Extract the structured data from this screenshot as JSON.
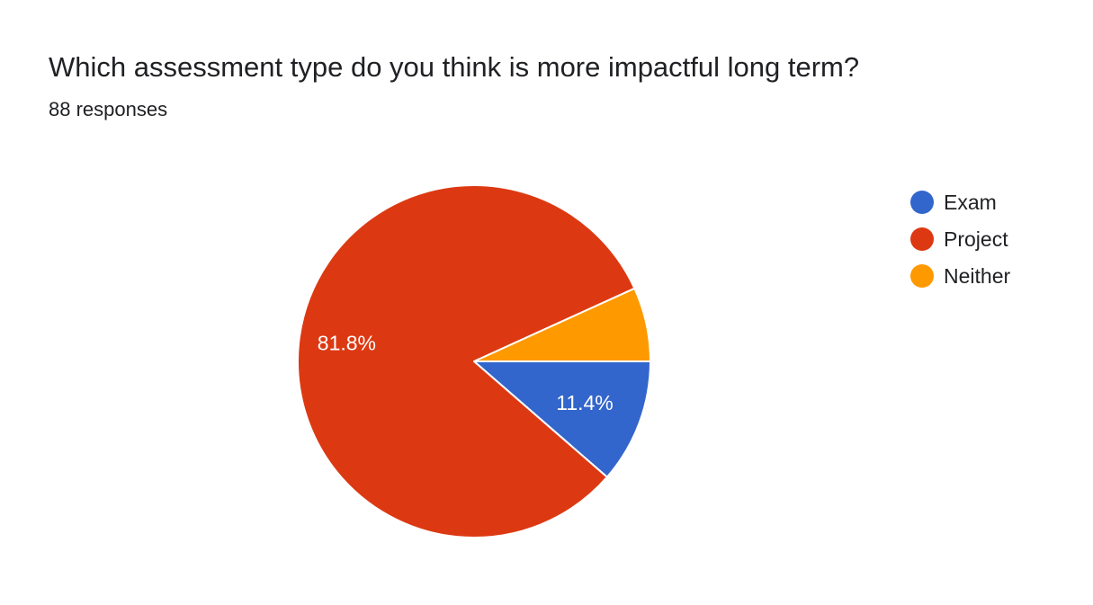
{
  "header": {
    "title": "Which assessment type do you think is more impactful long term?",
    "responses": "88 responses"
  },
  "chart_data": {
    "type": "pie",
    "categories": [
      "Exam",
      "Project",
      "Neither"
    ],
    "values": [
      11.4,
      81.8,
      6.8
    ],
    "data_labels": [
      "11.4%",
      "81.8%",
      ""
    ],
    "colors": [
      "#3366cc",
      "#dc3912",
      "#ff9900"
    ],
    "legend_position": "right",
    "title": "Which assessment type do you think is more impactful long term?",
    "subtitle": "88 responses"
  }
}
